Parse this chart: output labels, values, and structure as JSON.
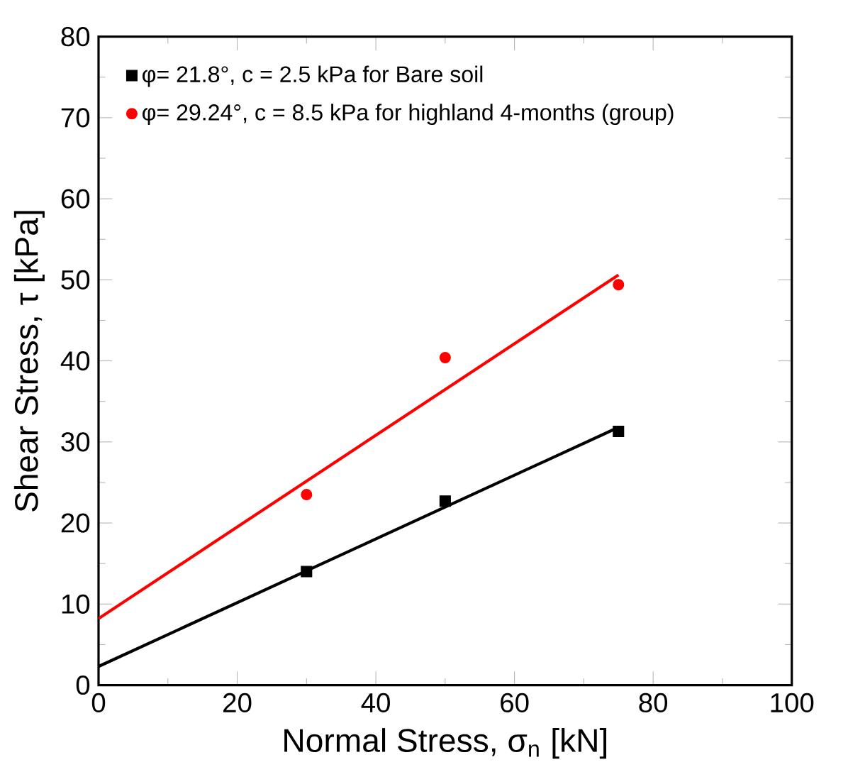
{
  "chart_data": {
    "type": "scatter",
    "xlabel": "Normal Stress, σ$_{n}$ [kN]",
    "ylabel": "Shear Stress, τ [kPa]",
    "xlim": [
      0,
      100
    ],
    "ylim": [
      0,
      80
    ],
    "xticks": [
      0,
      20,
      40,
      60,
      80,
      100
    ],
    "yticks": [
      0,
      10,
      20,
      30,
      40,
      50,
      60,
      70,
      80
    ],
    "grid": false,
    "legend": "top left",
    "series": [
      {
        "name": "φ= 21.8°, c = 2.5 kPa for Bare soil",
        "marker": "square",
        "color": "#000000",
        "x": [
          30,
          50,
          75
        ],
        "values": [
          14,
          22.7,
          31.3
        ]
      },
      {
        "name": "φ= 29.24°, c = 8.5 kPa for highland 4-months (group)",
        "marker": "circle",
        "color": "#ff0000",
        "x": [
          30,
          50,
          75
        ],
        "values": [
          23.5,
          40.4,
          49.4
        ]
      },
      {
        "type": "line",
        "marker": "none",
        "color": "#000000",
        "x": [
          0,
          75
        ],
        "values": [
          2.3,
          31.8
        ]
      },
      {
        "type": "line",
        "marker": "none",
        "color": "#ff0000",
        "x": [
          0,
          75
        ],
        "values": [
          8.2,
          50.6
        ]
      }
    ]
  }
}
